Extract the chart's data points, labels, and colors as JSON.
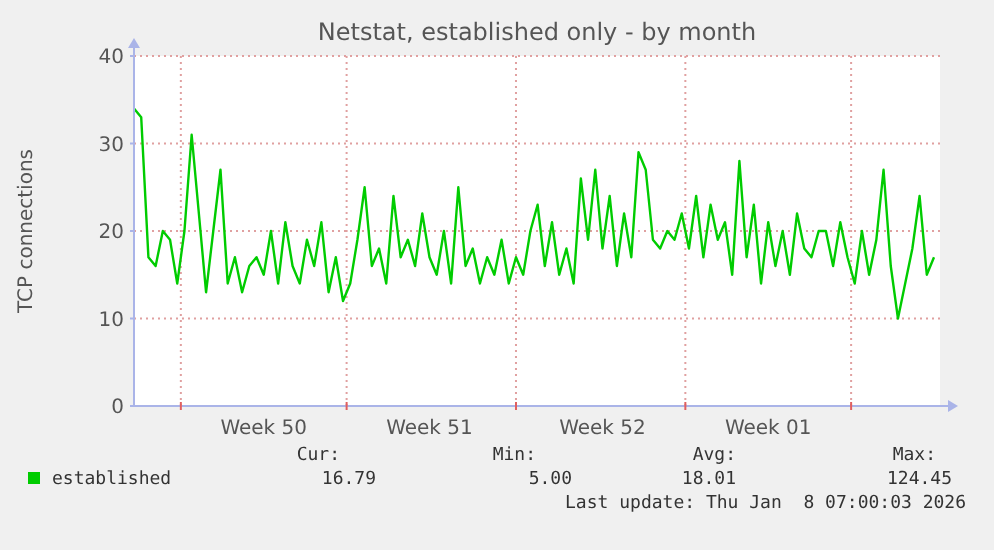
{
  "chart_data": {
    "type": "line",
    "title": "Netstat, established only - by month",
    "ylabel": "TCP connections",
    "categories": [
      null,
      null,
      null,
      null,
      null,
      null,
      null,
      null,
      null,
      null,
      null,
      null,
      null,
      null,
      null,
      null,
      null,
      null,
      "Week 50",
      null,
      null,
      null,
      null,
      null,
      null,
      null,
      null,
      null,
      null,
      null,
      null,
      null,
      null,
      null,
      null,
      null,
      null,
      null,
      null,
      null,
      null,
      "Week 51",
      null,
      null,
      null,
      null,
      null,
      null,
      null,
      null,
      null,
      null,
      null,
      null,
      null,
      null,
      null,
      null,
      null,
      null,
      null,
      null,
      null,
      null,
      null,
      "Week 52",
      null,
      null,
      null,
      null,
      null,
      null,
      null,
      null,
      null,
      null,
      null,
      null,
      null,
      null,
      null,
      null,
      null,
      null,
      null,
      null,
      null,
      null,
      "Week 01",
      null,
      null,
      null,
      null,
      null,
      null,
      null,
      null,
      null,
      null,
      null,
      null,
      null,
      null,
      null,
      null,
      null,
      null,
      null,
      null,
      null,
      null,
      null
    ],
    "series": [
      {
        "name": "established",
        "color": "#00cc00",
        "values": [
          34,
          33,
          17,
          16,
          20,
          19,
          14,
          20,
          31,
          22,
          13,
          20,
          27,
          14,
          17,
          13,
          16,
          17,
          15,
          20,
          14,
          21,
          16,
          14,
          19,
          16,
          21,
          13,
          17,
          12,
          14,
          19,
          25,
          16,
          18,
          14,
          24,
          17,
          19,
          16,
          22,
          17,
          15,
          20,
          14,
          25,
          16,
          18,
          14,
          17,
          15,
          19,
          14,
          17,
          15,
          20,
          23,
          16,
          21,
          15,
          18,
          14,
          26,
          19,
          27,
          18,
          24,
          16,
          22,
          17,
          29,
          27,
          19,
          18,
          20,
          19,
          22,
          18,
          24,
          17,
          23,
          19,
          21,
          15,
          28,
          17,
          23,
          14,
          21,
          16,
          20,
          15,
          22,
          18,
          17,
          20,
          20,
          16,
          21,
          17,
          14,
          20,
          15,
          19,
          27,
          16,
          10,
          14,
          18,
          24,
          15,
          17
        ]
      }
    ],
    "ylim": [
      0,
      40
    ],
    "yticks": [
      0,
      10,
      20,
      30,
      40
    ],
    "grid": true,
    "legend": "bottom left",
    "annotations": [
      "Cur:",
      "Min:",
      "Avg:",
      "Max:",
      "16.79",
      "5.00",
      "18.01",
      "124.45",
      "Last update: Thu Jan  8 07:00:03 2026"
    ]
  }
}
